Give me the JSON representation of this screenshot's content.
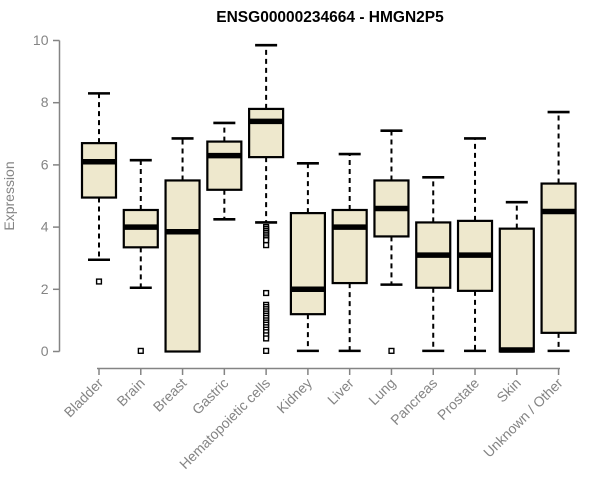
{
  "chart_data": {
    "type": "boxplot",
    "title": "ENSG00000234664 - HMGN2P5",
    "xlabel": "",
    "ylabel": "Expression",
    "ylim": [
      0,
      10
    ],
    "yticks": [
      0,
      2,
      4,
      6,
      8,
      10
    ],
    "grid": "off",
    "legend": "none",
    "colors": {
      "box_fill": "#EEE8CD",
      "box_border": "#000000",
      "median": "#000000",
      "whisker": "#000000",
      "axis": "#848484",
      "title": "#000000",
      "background": "#FFFFFF"
    },
    "categories": [
      "Bladder",
      "Brain",
      "Breast",
      "Gastric",
      "Hematopoietic cells",
      "Kidney",
      "Liver",
      "Lung",
      "Pancreas",
      "Prostate",
      "Skin",
      "Unknown / Other"
    ],
    "series": [
      {
        "label": "Bladder",
        "whisker_low": 2.95,
        "q1": 4.95,
        "median": 6.1,
        "q3": 6.7,
        "whisker_high": 8.3,
        "outliers": [
          2.25
        ]
      },
      {
        "label": "Brain",
        "whisker_low": 2.05,
        "q1": 3.35,
        "median": 4.0,
        "q3": 4.55,
        "whisker_high": 6.15,
        "outliers": [
          0.02
        ]
      },
      {
        "label": "Breast",
        "whisker_low": 0.0,
        "q1": 0.0,
        "median": 3.85,
        "q3": 5.5,
        "whisker_high": 6.85,
        "outliers": []
      },
      {
        "label": "Gastric",
        "whisker_low": 4.25,
        "q1": 5.2,
        "median": 6.3,
        "q3": 6.75,
        "whisker_high": 7.35,
        "outliers": []
      },
      {
        "label": "Hematopoietic cells",
        "whisker_low": 4.15,
        "q1": 6.25,
        "median": 7.4,
        "q3": 7.8,
        "whisker_high": 9.85,
        "outliers": [
          4.0,
          3.94,
          3.88,
          3.82,
          3.76,
          3.7,
          3.64,
          3.58,
          3.42,
          1.88,
          1.5,
          1.43,
          1.36,
          1.29,
          1.22,
          1.15,
          1.08,
          1.0,
          0.93,
          0.86,
          0.78,
          0.7,
          0.62,
          0.52,
          0.42,
          0.02
        ]
      },
      {
        "label": "Kidney",
        "whisker_low": 0.02,
        "q1": 1.2,
        "median": 2.0,
        "q3": 4.45,
        "whisker_high": 6.05,
        "outliers": []
      },
      {
        "label": "Liver",
        "whisker_low": 0.02,
        "q1": 2.2,
        "median": 4.0,
        "q3": 4.55,
        "whisker_high": 6.35,
        "outliers": []
      },
      {
        "label": "Lung",
        "whisker_low": 2.15,
        "q1": 3.7,
        "median": 4.6,
        "q3": 5.5,
        "whisker_high": 7.1,
        "outliers": [
          0.02
        ]
      },
      {
        "label": "Pancreas",
        "whisker_low": 0.02,
        "q1": 2.05,
        "median": 3.1,
        "q3": 4.15,
        "whisker_high": 5.6,
        "outliers": []
      },
      {
        "label": "Prostate",
        "whisker_low": 0.02,
        "q1": 1.95,
        "median": 3.1,
        "q3": 4.2,
        "whisker_high": 6.85,
        "outliers": []
      },
      {
        "label": "Skin",
        "whisker_low": 0.0,
        "q1": 0.0,
        "median": 0.05,
        "q3": 3.95,
        "whisker_high": 4.8,
        "outliers": []
      },
      {
        "label": "Unknown / Other",
        "whisker_low": 0.02,
        "q1": 0.6,
        "median": 4.5,
        "q3": 5.4,
        "whisker_high": 7.7,
        "outliers": []
      }
    ]
  }
}
